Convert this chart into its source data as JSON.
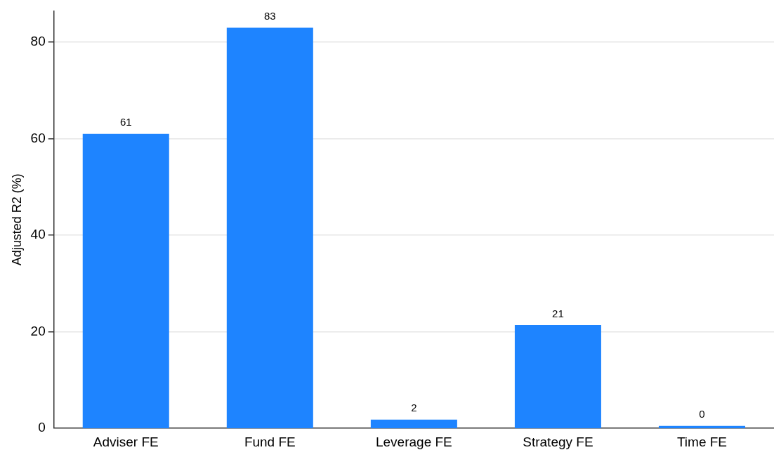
{
  "chart_data": {
    "type": "bar",
    "ylabel": "Adjusted R2 (%)",
    "categories": [
      "Adviser FE",
      "Fund FE",
      "Leverage FE",
      "Strategy FE",
      "Time FE"
    ],
    "values": [
      61,
      83,
      1.8,
      21.4,
      0.5
    ],
    "value_labels": [
      "61",
      "83",
      "2",
      "21",
      "0"
    ],
    "color": "#1e84ff",
    "ylim": [
      0,
      86.5
    ],
    "yticks": [
      0,
      20,
      40,
      60,
      80
    ],
    "grid": "y",
    "legend": false
  }
}
